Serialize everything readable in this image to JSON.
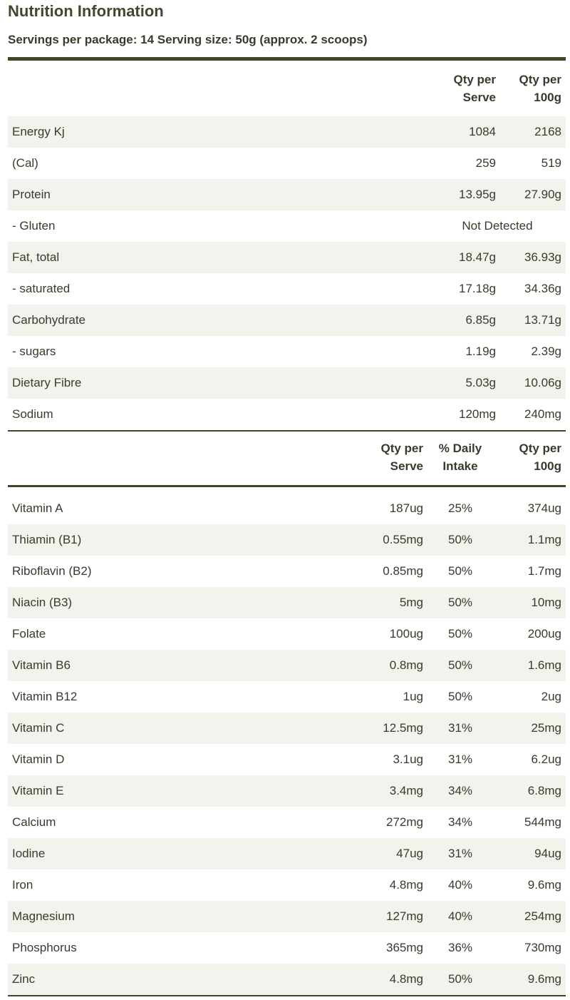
{
  "title": "Nutrition Information",
  "servings": "Servings per package: 14 Serving size: 50g (approx. 2 scoops)",
  "colors": {
    "accent": "#3d4826",
    "stripe": "#f3f3ee",
    "text": "#3a3a2c"
  },
  "table1": {
    "headers": [
      "Qty per Serve",
      "Qty per 100g"
    ],
    "rows": [
      {
        "name": "Energy Kj",
        "serve": "1084",
        "per100": "2168"
      },
      {
        "name": "(Cal)",
        "serve": "259",
        "per100": "519"
      },
      {
        "name": "Protein",
        "serve": "13.95g",
        "per100": "27.90g"
      },
      {
        "name": "- Gluten",
        "span": "Not Detected"
      },
      {
        "name": "Fat, total",
        "serve": "18.47g",
        "per100": "36.93g"
      },
      {
        "name": "- saturated",
        "serve": "17.18g",
        "per100": "34.36g"
      },
      {
        "name": "Carbohydrate",
        "serve": "6.85g",
        "per100": "13.71g"
      },
      {
        "name": "- sugars",
        "serve": "1.19g",
        "per100": "2.39g"
      },
      {
        "name": "Dietary Fibre",
        "serve": "5.03g",
        "per100": "10.06g"
      },
      {
        "name": "Sodium",
        "serve": "120mg",
        "per100": "240mg"
      }
    ]
  },
  "table2": {
    "headers": [
      "Qty per Serve",
      "% Daily Intake",
      "Qty per 100g"
    ],
    "rows": [
      {
        "name": "Vitamin A",
        "serve": "187ug",
        "daily": "25%",
        "per100": "374ug"
      },
      {
        "name": "Thiamin (B1)",
        "serve": "0.55mg",
        "daily": "50%",
        "per100": "1.1mg"
      },
      {
        "name": "Riboflavin (B2)",
        "serve": "0.85mg",
        "daily": "50%",
        "per100": "1.7mg"
      },
      {
        "name": "Niacin (B3)",
        "serve": "5mg",
        "daily": "50%",
        "per100": "10mg"
      },
      {
        "name": "Folate",
        "serve": "100ug",
        "daily": "50%",
        "per100": "200ug"
      },
      {
        "name": "Vitamin B6",
        "serve": "0.8mg",
        "daily": "50%",
        "per100": "1.6mg"
      },
      {
        "name": "Vitamin B12",
        "serve": "1ug",
        "daily": "50%",
        "per100": "2ug"
      },
      {
        "name": "Vitamin C",
        "serve": "12.5mg",
        "daily": "31%",
        "per100": "25mg"
      },
      {
        "name": "Vitamin D",
        "serve": "3.1ug",
        "daily": "31%",
        "per100": "6.2ug"
      },
      {
        "name": "Vitamin E",
        "serve": "3.4mg",
        "daily": "34%",
        "per100": "6.8mg"
      },
      {
        "name": "Calcium",
        "serve": "272mg",
        "daily": "34%",
        "per100": "544mg"
      },
      {
        "name": "Iodine",
        "serve": "47ug",
        "daily": "31%",
        "per100": "94ug"
      },
      {
        "name": "Iron",
        "serve": "4.8mg",
        "daily": "40%",
        "per100": "9.6mg"
      },
      {
        "name": "Magnesium",
        "serve": "127mg",
        "daily": "40%",
        "per100": "254mg"
      },
      {
        "name": "Phosphorus",
        "serve": "365mg",
        "daily": "36%",
        "per100": "730mg"
      },
      {
        "name": "Zinc",
        "serve": "4.8mg",
        "daily": "50%",
        "per100": "9.6mg"
      }
    ]
  }
}
